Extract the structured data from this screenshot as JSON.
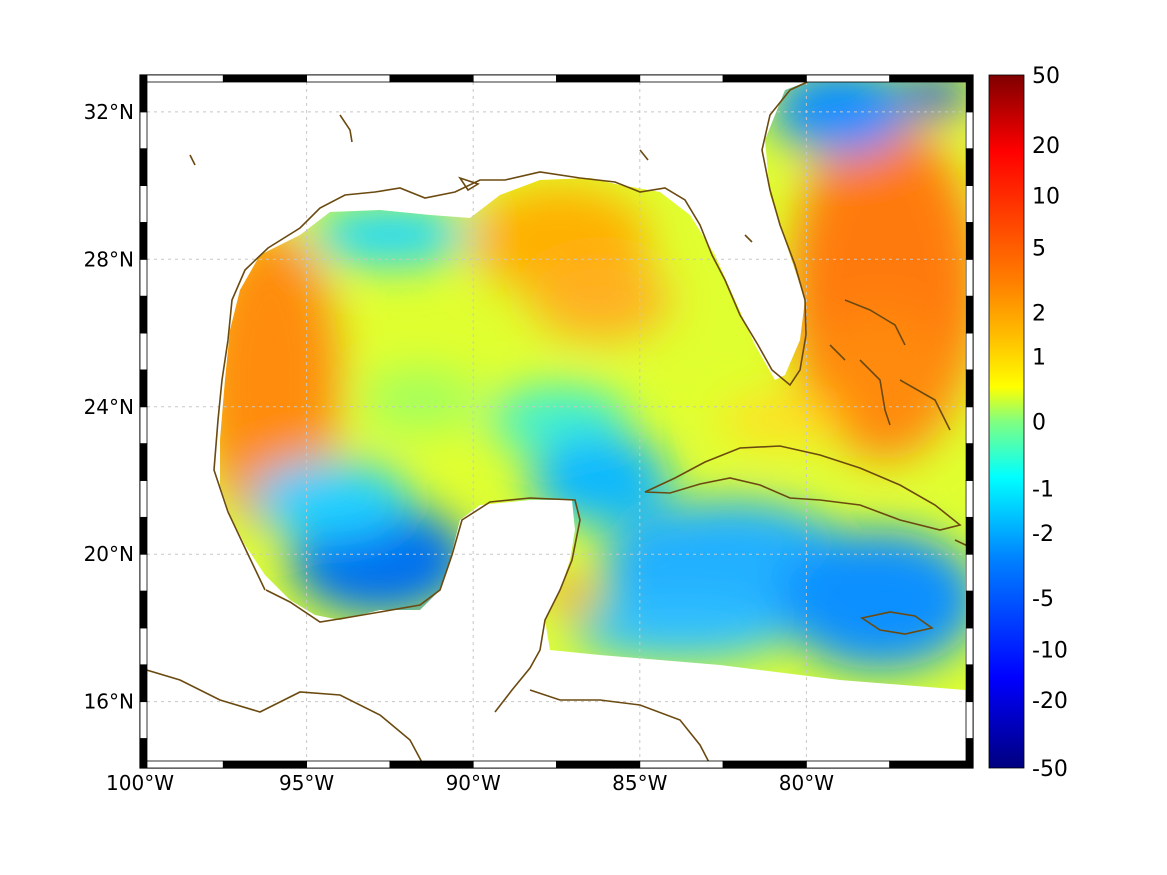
{
  "map": {
    "lon_range": [
      -100,
      -75
    ],
    "lat_range": [
      14.2,
      33
    ],
    "lon_ticks": [
      {
        "value": -100,
        "label": "100°W"
      },
      {
        "value": -95,
        "label": "95°W"
      },
      {
        "value": -90,
        "label": "90°W"
      },
      {
        "value": -85,
        "label": "85°W"
      },
      {
        "value": -80,
        "label": "80°W"
      }
    ],
    "lat_ticks": [
      {
        "value": 32,
        "label": "32°N"
      },
      {
        "value": 28,
        "label": "28°N"
      },
      {
        "value": 24,
        "label": "24°N"
      },
      {
        "value": 20,
        "label": "20°N"
      },
      {
        "value": 16,
        "label": "16°N"
      }
    ],
    "grid": true,
    "coastline_color": "#6b4a10",
    "colormap": "jet"
  },
  "colorbar": {
    "labels": [
      "50",
      "20",
      "10",
      "5",
      "2",
      "1",
      "0",
      "-1",
      "-2",
      "-5",
      "-10",
      "-20",
      "-50"
    ],
    "colors": [
      "#7f0000",
      "#ff0000",
      "#ff8000",
      "#ffff00",
      "#80ff80",
      "#00ffff",
      "#0080ff",
      "#0000ff",
      "#00007f"
    ]
  }
}
